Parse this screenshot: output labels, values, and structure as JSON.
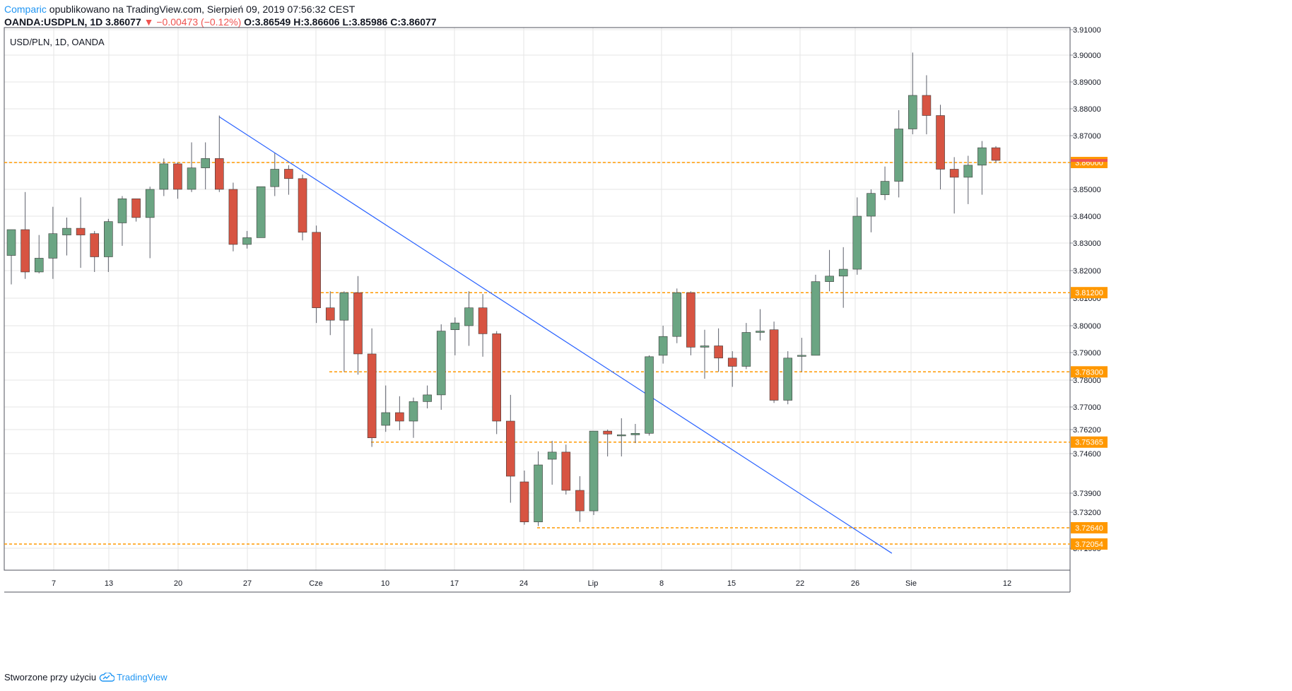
{
  "header": {
    "author": "Comparic",
    "published": "opublikowano na TradingView.com, Sierpień 09, 2019 07:56:32 CEST",
    "symbol": "OANDA:USDPLN, 1D",
    "last": "3.86077",
    "change": "−0.00473 (−0.12%)",
    "o_label": "O:",
    "o": "3.86549",
    "h_label": "H:",
    "h": "3.86606",
    "l_label": "L:",
    "l": "3.85986",
    "c_label": "C:",
    "c": "3.86077"
  },
  "footer": {
    "text": "Stworzone przy użyciu",
    "brand": "TradingView"
  },
  "colors": {
    "up": "#6ba583",
    "down": "#d75442",
    "wick": "#5d606b",
    "hline": "#ff9800",
    "trendline": "#2962ff",
    "grid": "#e6e6e6",
    "last_price": "#ef5350"
  },
  "chart_data": {
    "type": "candlestick",
    "legend": "USD/PLN, 1D, OANDA",
    "y_ticks": [
      "3.91000",
      "3.90000",
      "3.89000",
      "3.88000",
      "3.87000",
      "3.86000",
      "3.85000",
      "3.84000",
      "3.83000",
      "3.82000",
      "3.81000",
      "3.80000",
      "3.79000",
      "3.78000",
      "3.77000",
      "3.76200",
      "3.74600",
      "3.73900",
      "3.73200",
      "3.71900"
    ],
    "x_ticks": [
      "7",
      "13",
      "20",
      "27",
      "Cze",
      "10",
      "17",
      "24",
      "Lip",
      "8",
      "15",
      "22",
      "26",
      "Sie",
      "12"
    ],
    "ylim": [
      3.7172,
      3.9115
    ],
    "candles": [
      {
        "o": 3.8255,
        "h": 3.834,
        "l": 3.815,
        "c": 3.835
      },
      {
        "o": 3.835,
        "h": 3.849,
        "l": 3.817,
        "c": 3.8195
      },
      {
        "o": 3.8195,
        "h": 3.833,
        "l": 3.819,
        "c": 3.8245
      },
      {
        "o": 3.8245,
        "h": 3.8435,
        "l": 3.817,
        "c": 3.8335
      },
      {
        "o": 3.833,
        "h": 3.8395,
        "l": 3.8255,
        "c": 3.8355
      },
      {
        "o": 3.8355,
        "h": 3.847,
        "l": 3.821,
        "c": 3.833
      },
      {
        "o": 3.8335,
        "h": 3.8345,
        "l": 3.8195,
        "c": 3.825
      },
      {
        "o": 3.825,
        "h": 3.839,
        "l": 3.8195,
        "c": 3.838
      },
      {
        "o": 3.8375,
        "h": 3.8475,
        "l": 3.829,
        "c": 3.8465
      },
      {
        "o": 3.8465,
        "h": 3.8465,
        "l": 3.838,
        "c": 3.8395
      },
      {
        "o": 3.8395,
        "h": 3.851,
        "l": 3.8245,
        "c": 3.85
      },
      {
        "o": 3.85,
        "h": 3.8615,
        "l": 3.8475,
        "c": 3.8595
      },
      {
        "o": 3.8595,
        "h": 3.86,
        "l": 3.8465,
        "c": 3.85
      },
      {
        "o": 3.85,
        "h": 3.8675,
        "l": 3.849,
        "c": 3.858
      },
      {
        "o": 3.858,
        "h": 3.8675,
        "l": 3.85,
        "c": 3.8615
      },
      {
        "o": 3.8615,
        "h": 3.8775,
        "l": 3.849,
        "c": 3.85
      },
      {
        "o": 3.85,
        "h": 3.8525,
        "l": 3.827,
        "c": 3.8295
      },
      {
        "o": 3.8295,
        "h": 3.8345,
        "l": 3.828,
        "c": 3.832
      },
      {
        "o": 3.832,
        "h": 3.851,
        "l": 3.832,
        "c": 3.851
      },
      {
        "o": 3.851,
        "h": 3.8635,
        "l": 3.8475,
        "c": 3.8575
      },
      {
        "o": 3.8575,
        "h": 3.859,
        "l": 3.848,
        "c": 3.854
      },
      {
        "o": 3.854,
        "h": 3.8555,
        "l": 3.831,
        "c": 3.834
      },
      {
        "o": 3.834,
        "h": 3.8365,
        "l": 3.801,
        "c": 3.8065
      },
      {
        "o": 3.8065,
        "h": 3.8125,
        "l": 3.7965,
        "c": 3.802
      },
      {
        "o": 3.802,
        "h": 3.8125,
        "l": 3.783,
        "c": 3.812
      },
      {
        "o": 3.812,
        "h": 3.818,
        "l": 3.782,
        "c": 3.7895
      },
      {
        "o": 3.7895,
        "h": 3.799,
        "l": 3.7505,
        "c": 3.7565
      },
      {
        "o": 3.7635,
        "h": 3.778,
        "l": 3.7605,
        "c": 3.768
      },
      {
        "o": 3.768,
        "h": 3.774,
        "l": 3.7615,
        "c": 3.765
      },
      {
        "o": 3.765,
        "h": 3.7735,
        "l": 3.7565,
        "c": 3.772
      },
      {
        "o": 3.772,
        "h": 3.778,
        "l": 3.7695,
        "c": 3.7745
      },
      {
        "o": 3.7745,
        "h": 3.8005,
        "l": 3.769,
        "c": 3.798
      },
      {
        "o": 3.7985,
        "h": 3.803,
        "l": 3.789,
        "c": 3.801
      },
      {
        "o": 3.8,
        "h": 3.8125,
        "l": 3.7925,
        "c": 3.8065
      },
      {
        "o": 3.8065,
        "h": 3.8115,
        "l": 3.7885,
        "c": 3.797
      },
      {
        "o": 3.797,
        "h": 3.798,
        "l": 3.759,
        "c": 3.765
      },
      {
        "o": 3.765,
        "h": 3.7745,
        "l": 3.7355,
        "c": 3.742
      },
      {
        "o": 3.741,
        "h": 3.743,
        "l": 3.7275,
        "c": 3.7285
      },
      {
        "o": 3.7285,
        "h": 3.7475,
        "l": 3.727,
        "c": 3.744
      },
      {
        "o": 3.745,
        "h": 3.7545,
        "l": 3.7405,
        "c": 3.747
      },
      {
        "o": 3.747,
        "h": 3.752,
        "l": 3.7385,
        "c": 3.7395
      },
      {
        "o": 3.7395,
        "h": 3.742,
        "l": 3.7285,
        "c": 3.7325
      },
      {
        "o": 3.7325,
        "h": 3.761,
        "l": 3.731,
        "c": 3.761
      },
      {
        "o": 3.761,
        "h": 3.762,
        "l": 3.7455,
        "c": 3.759
      },
      {
        "o": 3.7585,
        "h": 3.766,
        "l": 3.7455,
        "c": 3.7585
      },
      {
        "o": 3.7585,
        "h": 3.764,
        "l": 3.753,
        "c": 3.7595
      },
      {
        "o": 3.7595,
        "h": 3.789,
        "l": 3.758,
        "c": 3.7885
      },
      {
        "o": 3.789,
        "h": 3.8,
        "l": 3.786,
        "c": 3.796
      },
      {
        "o": 3.796,
        "h": 3.8135,
        "l": 3.7935,
        "c": 3.812
      },
      {
        "o": 3.812,
        "h": 3.8125,
        "l": 3.789,
        "c": 3.792
      },
      {
        "o": 3.792,
        "h": 3.7985,
        "l": 3.7805,
        "c": 3.7925
      },
      {
        "o": 3.7925,
        "h": 3.799,
        "l": 3.783,
        "c": 3.788
      },
      {
        "o": 3.788,
        "h": 3.7905,
        "l": 3.7775,
        "c": 3.785
      },
      {
        "o": 3.785,
        "h": 3.801,
        "l": 3.784,
        "c": 3.7975
      },
      {
        "o": 3.7975,
        "h": 3.806,
        "l": 3.7945,
        "c": 3.798
      },
      {
        "o": 3.7985,
        "h": 3.8015,
        "l": 3.7715,
        "c": 3.7725
      },
      {
        "o": 3.7725,
        "h": 3.7905,
        "l": 3.771,
        "c": 3.788
      },
      {
        "o": 3.789,
        "h": 3.7955,
        "l": 3.783,
        "c": 3.789
      },
      {
        "o": 3.789,
        "h": 3.8185,
        "l": 3.789,
        "c": 3.816
      },
      {
        "o": 3.816,
        "h": 3.8275,
        "l": 3.8125,
        "c": 3.818
      },
      {
        "o": 3.818,
        "h": 3.8285,
        "l": 3.8065,
        "c": 3.8205
      },
      {
        "o": 3.8205,
        "h": 3.847,
        "l": 3.8185,
        "c": 3.84
      },
      {
        "o": 3.84,
        "h": 3.85,
        "l": 3.834,
        "c": 3.8485
      },
      {
        "o": 3.848,
        "h": 3.8585,
        "l": 3.846,
        "c": 3.853
      },
      {
        "o": 3.853,
        "h": 3.8795,
        "l": 3.847,
        "c": 3.8725
      },
      {
        "o": 3.8725,
        "h": 3.901,
        "l": 3.8705,
        "c": 3.885
      },
      {
        "o": 3.885,
        "h": 3.8925,
        "l": 3.8705,
        "c": 3.8775
      },
      {
        "o": 3.8775,
        "h": 3.8815,
        "l": 3.85,
        "c": 3.8575
      },
      {
        "o": 3.8575,
        "h": 3.862,
        "l": 3.841,
        "c": 3.8545
      },
      {
        "o": 3.8545,
        "h": 3.8625,
        "l": 3.8445,
        "c": 3.859
      },
      {
        "o": 3.859,
        "h": 3.868,
        "l": 3.848,
        "c": 3.8655
      },
      {
        "o": 3.8655,
        "h": 3.8661,
        "l": 3.8599,
        "c": 3.8608
      }
    ],
    "horizontal_levels": [
      {
        "label": "3.86000",
        "value": 3.86
      },
      {
        "label": "3.81200",
        "value": 3.812
      },
      {
        "label": "3.78300",
        "value": 3.783
      },
      {
        "label": "3.75365",
        "value": 3.75365
      },
      {
        "label": "3.72640",
        "value": 3.7264
      },
      {
        "label": "3.72054",
        "value": 3.72054
      }
    ],
    "trendline": {
      "from": {
        "candle": 15,
        "price": 3.877
      },
      "to": {
        "candle": 63.5,
        "price": 3.7172
      }
    }
  }
}
